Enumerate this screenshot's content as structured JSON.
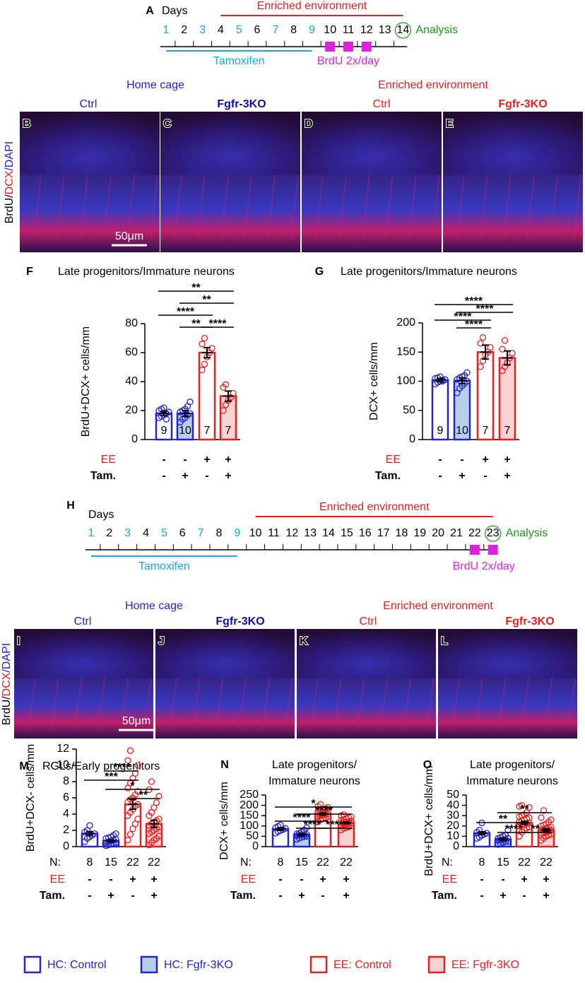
{
  "timeline_a": {
    "panel": "A",
    "days_label": "Days",
    "days": [
      1,
      2,
      3,
      4,
      5,
      6,
      7,
      8,
      9,
      10,
      11,
      12,
      13,
      14
    ],
    "highlight_days": [
      1,
      3,
      5,
      7,
      9
    ],
    "analysis_day": 14,
    "analysis_label": "Analysis",
    "ee_label": "Enriched environment",
    "ee_span": [
      4,
      14
    ],
    "tamoxifen_label": "Tamoxifen",
    "tamoxifen_span": [
      1,
      9
    ],
    "brdu_label": "BrdU 2x/day",
    "brdu_days": [
      10,
      11,
      12
    ]
  },
  "images_1": {
    "group_labels": [
      "Home cage",
      "Enriched environment"
    ],
    "column_labels": [
      "Ctrl",
      "Fgfr-3KO",
      "Ctrl",
      "Fgfr-3KO"
    ],
    "panels": [
      "B",
      "C",
      "D",
      "E"
    ],
    "stain": [
      "BrdU/",
      "DCX",
      "/DAPI"
    ],
    "scale_bar": "50μm"
  },
  "timeline_h": {
    "panel": "H",
    "days_label": "Days",
    "days": [
      1,
      2,
      3,
      4,
      5,
      6,
      7,
      8,
      9,
      10,
      11,
      12,
      13,
      14,
      15,
      16,
      17,
      18,
      19,
      20,
      21,
      22,
      23
    ],
    "highlight_days": [
      1,
      3,
      5,
      7,
      9
    ],
    "analysis_day": 23,
    "analysis_label": "Analysis",
    "ee_label": "Enriched environment",
    "ee_span": [
      10,
      23
    ],
    "tamoxifen_label": "Tamoxifen",
    "tamoxifen_span": [
      1,
      9
    ],
    "brdu_label": "BrdU 2x/day",
    "brdu_days": [
      22,
      23
    ]
  },
  "images_2": {
    "group_labels": [
      "Home cage",
      "Enriched environment"
    ],
    "column_labels": [
      "Ctrl",
      "Fgfr-3KO",
      "Ctrl",
      "Fgfr-3KO"
    ],
    "panels": [
      "I",
      "J",
      "K",
      "L"
    ],
    "stain": [
      "BrdU/",
      "DCX",
      "/DAPI"
    ],
    "scale_bar": "50μm"
  },
  "chart_data": [
    {
      "type": "bar",
      "panel": "F",
      "title": "Late progenitors/Immature neurons",
      "ylabel": "BrdU+DCX+ cells/mm",
      "ylim": [
        0,
        80
      ],
      "yticks": [
        0,
        20,
        40,
        60,
        80
      ],
      "values": [
        18,
        18,
        60,
        30
      ],
      "errors": [
        1.5,
        2,
        3.5,
        3.5
      ],
      "n": [
        9,
        10,
        7,
        7
      ],
      "colors": [
        "#2323d0",
        "#2323d0",
        "#ee1c1c",
        "#ee1c1c"
      ],
      "fills": [
        "#ffffff",
        "#b8cdea",
        "#ffffff",
        "#fbd2d2"
      ],
      "points": [
        [
          15,
          16,
          17,
          18,
          19,
          20,
          21,
          22,
          14
        ],
        [
          12,
          14,
          15,
          17,
          18,
          19,
          20,
          21,
          23,
          26
        ],
        [
          48,
          52,
          57,
          60,
          63,
          66,
          70
        ],
        [
          20,
          24,
          27,
          29,
          32,
          36,
          38
        ]
      ],
      "row_labels": [
        "EE",
        "Tam."
      ],
      "rows": [
        [
          "-",
          "-",
          "+",
          "+"
        ],
        [
          "-",
          "+",
          "-",
          "+"
        ]
      ],
      "significance": [
        {
          "from": 1,
          "to": 2,
          "label": "**"
        },
        {
          "from": 0,
          "to": 2,
          "label": "****"
        },
        {
          "from": 2,
          "to": 3,
          "label": "****"
        },
        {
          "from": 1,
          "to": 3,
          "label": "**"
        },
        {
          "from": 0,
          "to": 3,
          "label": "**"
        }
      ]
    },
    {
      "type": "bar",
      "panel": "G",
      "title": "Late progenitors/Immature neurons",
      "ylabel": "DCX+ cells/mm",
      "ylim": [
        0,
        200
      ],
      "yticks": [
        0,
        50,
        100,
        150,
        200
      ],
      "values": [
        102,
        101,
        150,
        140
      ],
      "errors": [
        3,
        5,
        12,
        12
      ],
      "n": [
        9,
        10,
        7,
        7
      ],
      "colors": [
        "#2323d0",
        "#2323d0",
        "#ee1c1c",
        "#ee1c1c"
      ],
      "fills": [
        "#ffffff",
        "#b8cdea",
        "#ffffff",
        "#fbd2d2"
      ],
      "points": [
        [
          95,
          98,
          100,
          102,
          103,
          105,
          106,
          108,
          100
        ],
        [
          80,
          88,
          92,
          96,
          100,
          103,
          106,
          108,
          110,
          115
        ],
        [
          125,
          135,
          145,
          150,
          158,
          165,
          175
        ],
        [
          118,
          125,
          132,
          140,
          148,
          155,
          170
        ]
      ],
      "row_labels": [
        "EE",
        "Tam."
      ],
      "rows": [
        [
          "-",
          "-",
          "+",
          "+"
        ],
        [
          "-",
          "+",
          "-",
          "+"
        ]
      ],
      "significance": [
        {
          "from": 1,
          "to": 2,
          "label": "****"
        },
        {
          "from": 0,
          "to": 2,
          "label": "****"
        },
        {
          "from": 1,
          "to": 3,
          "label": "****"
        },
        {
          "from": 0,
          "to": 3,
          "label": "****"
        }
      ]
    },
    {
      "type": "bar",
      "panel": "M",
      "title": "RGLs/Early progenitors",
      "ylabel": "BrdU+DCX- cells/mm",
      "ylim": [
        0,
        12
      ],
      "yticks": [
        0,
        2,
        4,
        6,
        8,
        10,
        12
      ],
      "values": [
        1.6,
        0.7,
        5.2,
        2.8
      ],
      "errors": [
        0.25,
        0.12,
        0.6,
        0.45
      ],
      "n_label": "N:",
      "n": [
        8,
        15,
        22,
        22
      ],
      "colors": [
        "#2323d0",
        "#2323d0",
        "#ee1c1c",
        "#ee1c1c"
      ],
      "fills": [
        "#ffffff",
        "#b8cdea",
        "#ffffff",
        "#fbd2d2"
      ],
      "points": [
        [
          0.6,
          1,
          1.2,
          1.4,
          1.6,
          1.8,
          2.0,
          2.6
        ],
        [
          0.1,
          0.2,
          0.3,
          0.4,
          0.5,
          0.5,
          0.6,
          0.7,
          0.8,
          0.9,
          1.0,
          1.1,
          1.2,
          1.4,
          1.6
        ],
        [
          0.8,
          1.5,
          2.2,
          2.8,
          3.4,
          3.8,
          4.2,
          4.6,
          5,
          5.2,
          5.5,
          5.8,
          6,
          6.4,
          6.8,
          7.2,
          7.8,
          8.4,
          9,
          10,
          10.6,
          11.8
        ],
        [
          0.2,
          0.5,
          0.8,
          1,
          1.3,
          1.6,
          1.8,
          2,
          2.2,
          2.4,
          2.6,
          2.8,
          3,
          3.2,
          3.4,
          3.8,
          4.2,
          4.8,
          5.4,
          6.2,
          7,
          8
        ]
      ],
      "row_labels": [
        "EE",
        "Tam."
      ],
      "rows": [
        [
          "-",
          "-",
          "+",
          "+"
        ],
        [
          "-",
          "+",
          "-",
          "+"
        ]
      ],
      "significance": [
        {
          "from": 2,
          "to": 3,
          "label": "**"
        },
        {
          "from": 1,
          "to": 3,
          "label": "*"
        },
        {
          "from": 0,
          "to": 2,
          "label": "***"
        },
        {
          "from": 1,
          "to": 2,
          "label": "****"
        }
      ]
    },
    {
      "type": "bar",
      "panel": "N",
      "title_lines": [
        "Late progenitors/",
        "Immature neurons"
      ],
      "ylabel": "DCX+ cells/mm",
      "ylim": [
        0,
        250
      ],
      "yticks": [
        0,
        50,
        100,
        150,
        200,
        250
      ],
      "values": [
        85,
        57,
        158,
        115
      ],
      "errors": [
        6,
        5,
        5,
        4
      ],
      "n_label": "N:",
      "n": [
        8,
        15,
        22,
        22
      ],
      "colors": [
        "#2323d0",
        "#2323d0",
        "#ee1c1c",
        "#ee1c1c"
      ],
      "fills": [
        "#ffffff",
        "#b8cdea",
        "#ffffff",
        "#fbd2d2"
      ],
      "points": [
        [
          65,
          72,
          78,
          82,
          88,
          92,
          98,
          105
        ],
        [
          35,
          40,
          45,
          48,
          50,
          52,
          55,
          57,
          58,
          60,
          62,
          65,
          70,
          80,
          92
        ],
        [
          120,
          130,
          135,
          140,
          145,
          148,
          150,
          152,
          155,
          158,
          160,
          162,
          165,
          168,
          170,
          172,
          175,
          180,
          185,
          190,
          195,
          205
        ],
        [
          80,
          88,
          92,
          96,
          100,
          104,
          108,
          110,
          112,
          114,
          116,
          118,
          120,
          122,
          125,
          128,
          130,
          135,
          140,
          145,
          150,
          155
        ]
      ],
      "row_labels": [
        "EE",
        "Tam."
      ],
      "rows": [
        [
          "-",
          "-",
          "+",
          "+"
        ],
        [
          "-",
          "+",
          "-",
          "+"
        ]
      ],
      "significance": [
        {
          "from": 1,
          "to": 2,
          "label": "****"
        },
        {
          "from": 2,
          "to": 3,
          "label": "****"
        },
        {
          "from": 0,
          "to": 2,
          "label": "****"
        },
        {
          "from": 1,
          "to": 3,
          "label": "****"
        },
        {
          "from": 0,
          "to": 3,
          "label": "*"
        }
      ]
    },
    {
      "type": "bar",
      "panel": "O",
      "title_lines": [
        "Late progenitors/",
        "Immature neurons"
      ],
      "ylabel": "BrdU+DCX+ cells/mm",
      "ylim": [
        0,
        50
      ],
      "yticks": [
        0,
        10,
        20,
        30,
        40,
        50
      ],
      "values": [
        13,
        7,
        23,
        16
      ],
      "errors": [
        1.5,
        1,
        1.5,
        1.5
      ],
      "n_label": "N:",
      "n": [
        8,
        15,
        22,
        22
      ],
      "colors": [
        "#2323d0",
        "#2323d0",
        "#ee1c1c",
        "#ee1c1c"
      ],
      "fills": [
        "#ffffff",
        "#b8cdea",
        "#ffffff",
        "#fbd2d2"
      ],
      "points": [
        [
          8,
          9,
          11,
          12,
          13,
          14,
          16,
          23
        ],
        [
          2,
          3,
          4,
          5,
          5,
          6,
          6,
          7,
          7,
          8,
          8,
          9,
          10,
          11,
          16
        ],
        [
          10,
          14,
          16,
          18,
          19,
          20,
          21,
          22,
          22,
          23,
          24,
          25,
          26,
          27,
          28,
          29,
          30,
          31,
          33,
          38,
          39,
          40
        ],
        [
          6,
          8,
          10,
          11,
          12,
          13,
          14,
          14,
          15,
          16,
          16,
          17,
          18,
          18,
          19,
          20,
          21,
          22,
          24,
          26,
          28,
          35
        ]
      ],
      "row_labels": [
        "EE",
        "Tam."
      ],
      "rows": [
        [
          "-",
          "-",
          "+",
          "+"
        ],
        [
          "-",
          "+",
          "-",
          "+"
        ]
      ],
      "significance": [
        {
          "from": 1,
          "to": 2,
          "label": "****"
        },
        {
          "from": 2,
          "to": 3,
          "label": "**"
        },
        {
          "from": 0,
          "to": 2,
          "label": "**"
        },
        {
          "from": 1,
          "to": 3,
          "label": "**"
        }
      ]
    }
  ],
  "legend": [
    {
      "label": "HC: Control",
      "stroke": "#2323d0",
      "fill": "#ffffff"
    },
    {
      "label": "HC: Fgfr-3KO",
      "stroke": "#2323d0",
      "fill": "#b8cdea"
    },
    {
      "label": "EE: Control",
      "stroke": "#ee1c1c",
      "fill": "#ffffff"
    },
    {
      "label": "EE: Fgfr-3KO",
      "stroke": "#ee1c1c",
      "fill": "#fbd2d2"
    }
  ]
}
